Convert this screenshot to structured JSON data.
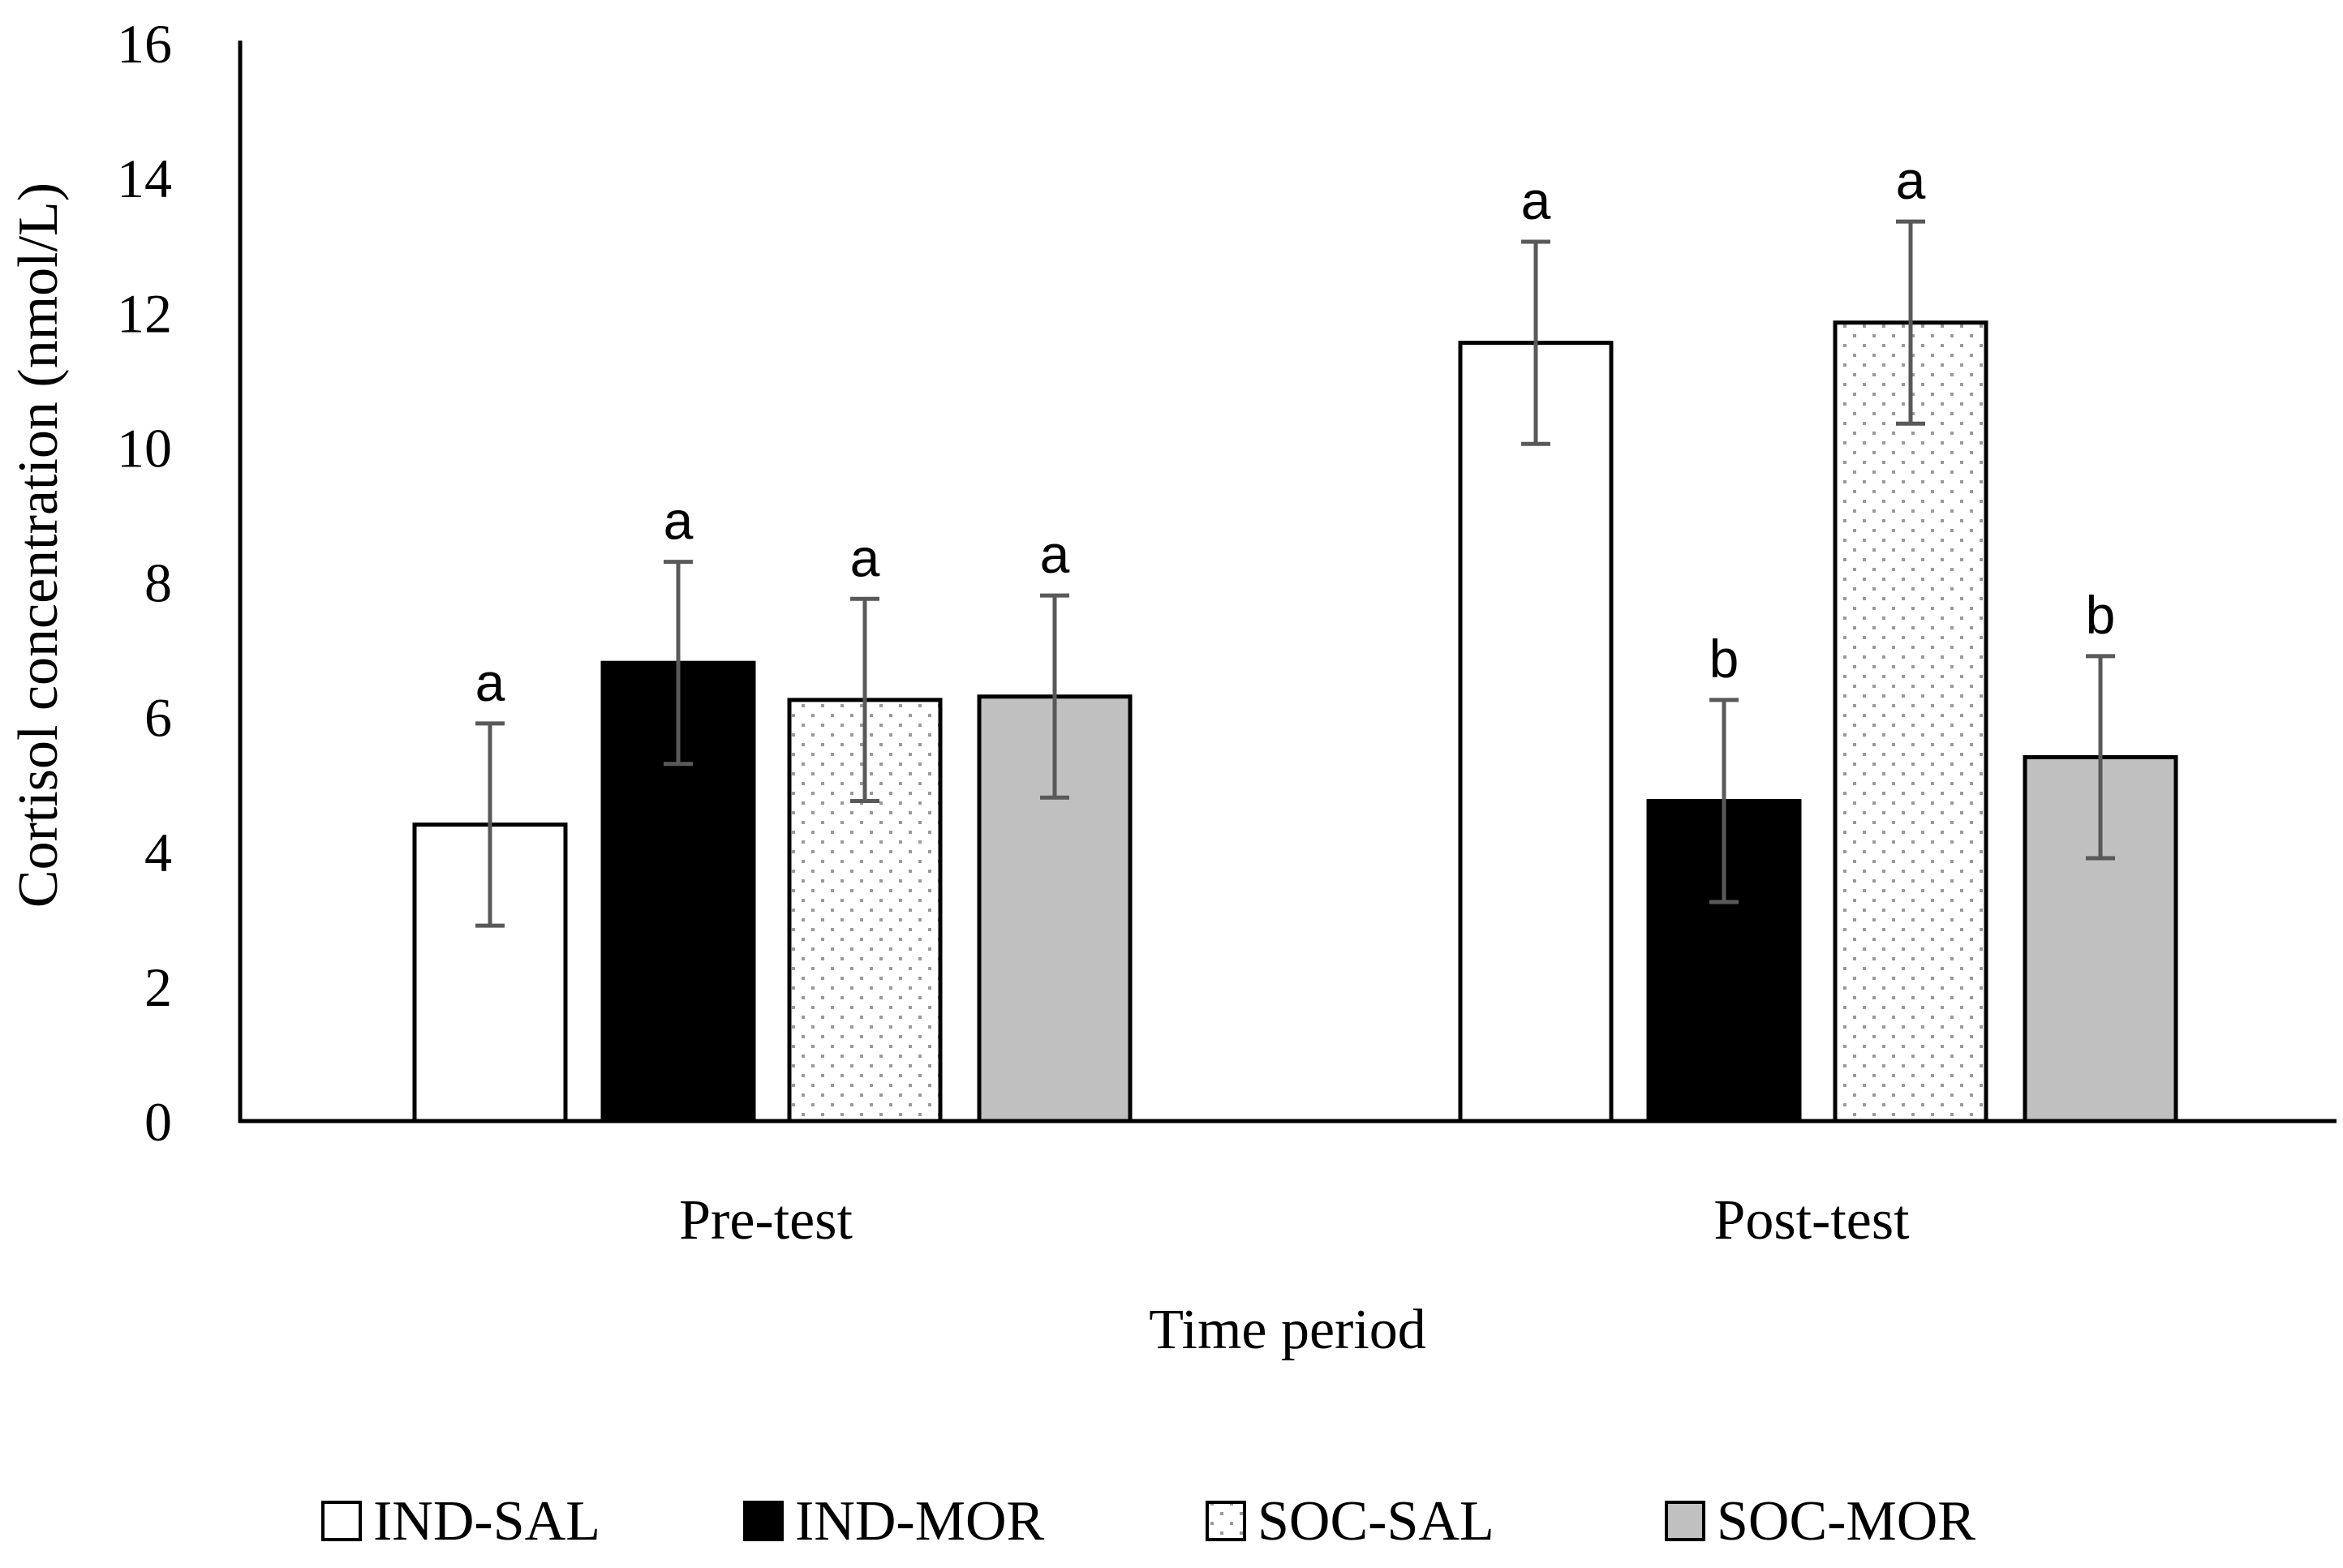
{
  "chart_data": {
    "type": "bar",
    "title": "",
    "xlabel": "Time period",
    "ylabel": "Cortisol concentration (nmol/L)",
    "ylim": [
      0,
      16
    ],
    "yticks": [
      "0",
      "2",
      "4",
      "6",
      "8",
      "10",
      "12",
      "14",
      "16"
    ],
    "grid": false,
    "legend_position": "bottom",
    "categories": [
      "Pre-test",
      "Post-test"
    ],
    "series": [
      {
        "name": "IND-SAL",
        "fill": "#ffffff",
        "pattern": "none",
        "values": [
          4.4,
          11.55
        ],
        "errors": [
          1.5,
          1.5
        ],
        "labels": [
          "a",
          "a"
        ]
      },
      {
        "name": "IND-MOR",
        "fill": "#000000",
        "pattern": "none",
        "values": [
          6.8,
          4.75
        ],
        "errors": [
          1.5,
          1.5
        ],
        "labels": [
          "a",
          "b"
        ]
      },
      {
        "name": "SOC-SAL",
        "fill": "#ffffff",
        "pattern": "dots",
        "values": [
          6.25,
          11.85
        ],
        "errors": [
          1.5,
          1.5
        ],
        "labels": [
          "a",
          "a"
        ]
      },
      {
        "name": "SOC-MOR",
        "fill": "#c0c0c0",
        "pattern": "none",
        "values": [
          6.3,
          5.4
        ],
        "errors": [
          1.5,
          1.5
        ],
        "labels": [
          "a",
          "b"
        ]
      }
    ],
    "colors": {
      "axis": "#000000",
      "error_bar": "#595959",
      "bar_edge": "#000000",
      "dot": "#9a9a9a"
    }
  }
}
